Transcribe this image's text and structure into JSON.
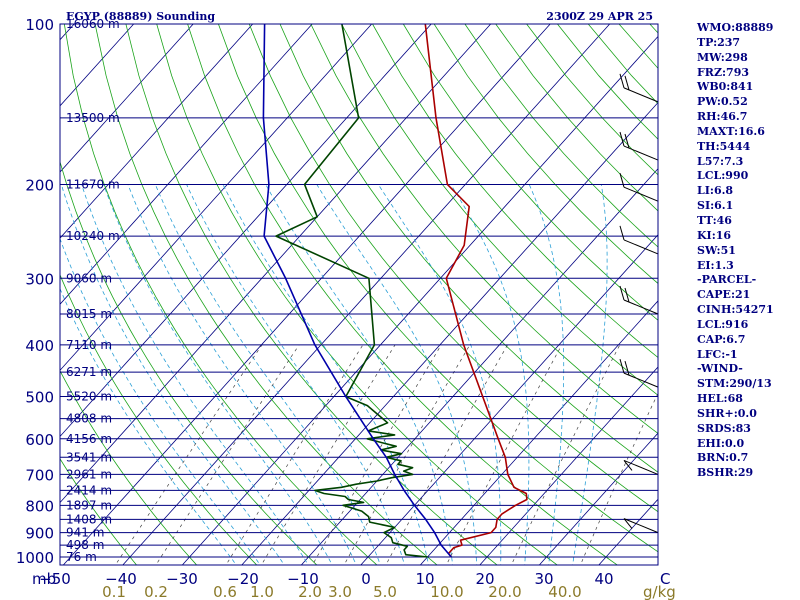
{
  "header": {
    "station": "EGYP (88889) Sounding",
    "time": "2300Z 29 APR 25"
  },
  "chart_data": {
    "type": "skew-t",
    "y_axis_unit": "mb",
    "pressure_levels": [
      100,
      200,
      300,
      400,
      500,
      600,
      700,
      800,
      900,
      1000
    ],
    "temperature_ticks": [
      -50,
      -40,
      -30,
      -20,
      -10,
      0,
      10,
      20,
      30,
      40
    ],
    "mixing_ratio_ticks": [
      "0.1",
      "0.2",
      "0.6",
      "1.0",
      "2.0",
      "3.0",
      "5.0",
      "10.0",
      "20.0",
      "40.0"
    ],
    "mixing_ratio_unit": "g/kg",
    "temperature_unit": "C",
    "height_labels": [
      {
        "p": 100,
        "label": "16060 m"
      },
      {
        "p": 150,
        "label": "13500 m"
      },
      {
        "p": 200,
        "label": "11670 m"
      },
      {
        "p": 250,
        "label": "10240 m"
      },
      {
        "p": 300,
        "label": "9060 m"
      },
      {
        "p": 350,
        "label": "8015 m"
      },
      {
        "p": 400,
        "label": "7110 m"
      },
      {
        "p": 450,
        "label": "6271 m"
      },
      {
        "p": 500,
        "label": "5520 m"
      },
      {
        "p": 550,
        "label": "4808 m"
      },
      {
        "p": 600,
        "label": "4156 m"
      },
      {
        "p": 650,
        "label": "3541 m"
      },
      {
        "p": 700,
        "label": "2961 m"
      },
      {
        "p": 750,
        "label": "2414 m"
      },
      {
        "p": 800,
        "label": "1897 m"
      },
      {
        "p": 850,
        "label": "1408 m"
      },
      {
        "p": 900,
        "label": "941 m"
      },
      {
        "p": 950,
        "label": "498 m"
      },
      {
        "p": 1000,
        "label": "76 m"
      }
    ],
    "series": [
      {
        "role": "temperature",
        "color": "#aa0000",
        "points": [
          [
            1000,
            14
          ],
          [
            985,
            13
          ],
          [
            960,
            13
          ],
          [
            950,
            14
          ],
          [
            930,
            13
          ],
          [
            900,
            17
          ],
          [
            880,
            17
          ],
          [
            850,
            16
          ],
          [
            830,
            16
          ],
          [
            800,
            17
          ],
          [
            780,
            18
          ],
          [
            760,
            17
          ],
          [
            740,
            14
          ],
          [
            700,
            11
          ],
          [
            650,
            8
          ],
          [
            600,
            4
          ],
          [
            500,
            -5
          ],
          [
            400,
            -16
          ],
          [
            300,
            -29
          ],
          [
            260,
            -31
          ],
          [
            220,
            -36
          ],
          [
            200,
            -43
          ],
          [
            150,
            -55
          ],
          [
            100,
            -71
          ]
        ]
      },
      {
        "role": "dewpoint",
        "color": "#004400",
        "points": [
          [
            1000,
            10
          ],
          [
            990,
            6
          ],
          [
            970,
            5
          ],
          [
            955,
            5
          ],
          [
            940,
            2
          ],
          [
            920,
            1
          ],
          [
            900,
            -1
          ],
          [
            880,
            0
          ],
          [
            860,
            -5
          ],
          [
            840,
            -6
          ],
          [
            820,
            -8
          ],
          [
            800,
            -12
          ],
          [
            790,
            -9
          ],
          [
            780,
            -12
          ],
          [
            770,
            -13
          ],
          [
            760,
            -17
          ],
          [
            750,
            -19
          ],
          [
            740,
            -15
          ],
          [
            730,
            -13
          ],
          [
            720,
            -10
          ],
          [
            710,
            -8
          ],
          [
            700,
            -5
          ],
          [
            690,
            -7
          ],
          [
            680,
            -6
          ],
          [
            670,
            -9
          ],
          [
            660,
            -9
          ],
          [
            650,
            -12
          ],
          [
            640,
            -10
          ],
          [
            630,
            -14
          ],
          [
            620,
            -12
          ],
          [
            610,
            -15
          ],
          [
            600,
            -18
          ],
          [
            590,
            -14
          ],
          [
            580,
            -19
          ],
          [
            560,
            -17
          ],
          [
            520,
            -23
          ],
          [
            500,
            -28
          ],
          [
            400,
            -31
          ],
          [
            300,
            -42
          ],
          [
            250,
            -64
          ],
          [
            230,
            -60
          ],
          [
            200,
            -67
          ],
          [
            150,
            -68
          ],
          [
            100,
            -85
          ]
        ]
      },
      {
        "role": "parcel",
        "color": "#0000aa",
        "points": [
          [
            1000,
            14
          ],
          [
            950,
            10.5
          ],
          [
            900,
            7.5
          ],
          [
            850,
            4
          ],
          [
            800,
            0
          ],
          [
            750,
            -4
          ],
          [
            700,
            -8
          ],
          [
            650,
            -12
          ],
          [
            600,
            -17
          ],
          [
            500,
            -28
          ],
          [
            400,
            -41
          ],
          [
            300,
            -56
          ],
          [
            250,
            -66
          ],
          [
            200,
            -73
          ],
          [
            150,
            -84
          ],
          [
            100,
            -98
          ]
        ]
      }
    ],
    "wind_barbs": [
      {
        "p": 140,
        "barbs": 2
      },
      {
        "p": 180,
        "barbs": 2
      },
      {
        "p": 215,
        "barbs": 1
      },
      {
        "p": 270,
        "barbs": 1
      },
      {
        "p": 350,
        "barbs": 2
      },
      {
        "p": 480,
        "barbs": 2
      },
      {
        "p": 700,
        "barbs": 0
      },
      {
        "p": 900,
        "barbs": 0
      }
    ]
  },
  "indices": [
    "WMO:88889",
    "TP:237",
    "MW:298",
    "FRZ:793",
    "WB0:841",
    "PW:0.52",
    "RH:46.7",
    "MAXT:16.6",
    "TH:5444",
    "L57:7.3",
    "LCL:990",
    "LI:6.8",
    "SI:6.1",
    "TT:46",
    "KI:16",
    "SW:51",
    "EI:1.3",
    "-PARCEL-",
    "CAPE:21",
    "CINH:54271",
    "LCL:916",
    "CAP:6.7",
    "LFC:-1",
    "-WIND-",
    "STM:290/13",
    "HEL:68",
    "SHR+:0.0",
    "SRDS:83",
    "EHI:0.0",
    "BRN:0.7",
    "BSHR:29"
  ],
  "colors": {
    "isobar": "#000080",
    "isotherm": "#000080",
    "dry_adiabat": "#1aa31a",
    "moist_adiabat": "#2a9fd6",
    "mixing_ratio": "#404040",
    "temperature": "#aa0000",
    "dewpoint": "#004400",
    "parcel": "#0000aa",
    "label": "#000080",
    "tick": "#8b7a2a"
  }
}
